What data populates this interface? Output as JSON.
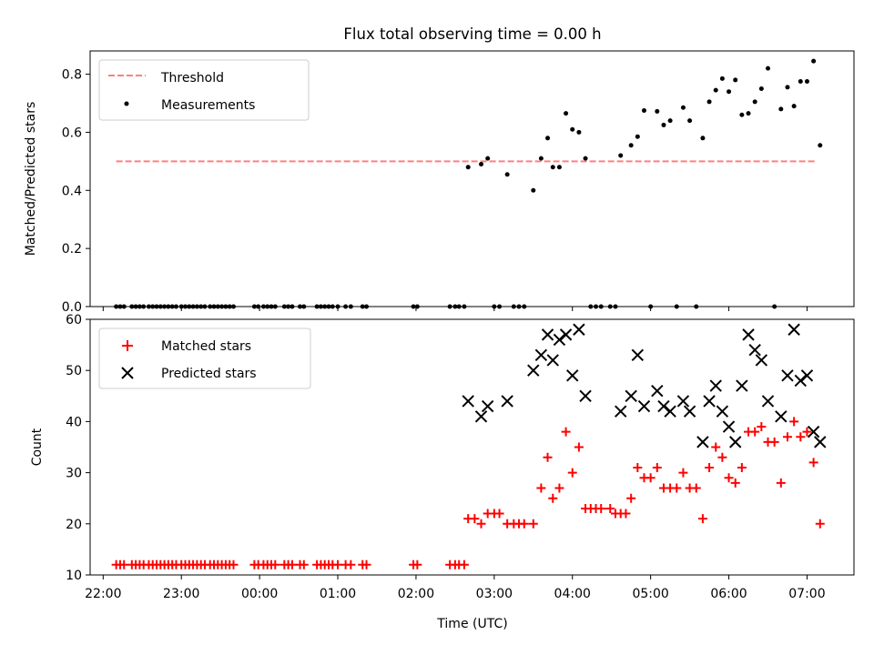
{
  "title": "Flux total observing time = 0.00 h",
  "colors": {
    "threshold": "#ff7f7f",
    "measurements": "#000000",
    "matched": "#ff0000",
    "predicted": "#000000"
  },
  "chart_data": [
    {
      "type": "scatter",
      "ylabel": "Matched/Predicted stars",
      "xlim": [
        "21:50",
        "07:36"
      ],
      "ylim": [
        0,
        0.88
      ],
      "yticks": [
        0.0,
        0.2,
        0.4,
        0.6,
        0.8
      ],
      "grid": false,
      "legend": "top-left",
      "threshold": {
        "name": "Threshold",
        "y": 0.5,
        "x": [
          "22:10",
          "07:06"
        ]
      },
      "series": [
        {
          "name": "Measurements",
          "points": [
            [
              "22:10",
              0
            ],
            [
              "22:13",
              0
            ],
            [
              "22:16",
              0
            ],
            [
              "22:22",
              0
            ],
            [
              "22:25",
              0
            ],
            [
              "22:28",
              0
            ],
            [
              "22:31",
              0
            ],
            [
              "22:35",
              0
            ],
            [
              "22:38",
              0
            ],
            [
              "22:41",
              0
            ],
            [
              "22:44",
              0
            ],
            [
              "22:47",
              0
            ],
            [
              "22:50",
              0
            ],
            [
              "22:53",
              0
            ],
            [
              "22:56",
              0
            ],
            [
              "23:00",
              0
            ],
            [
              "23:03",
              0
            ],
            [
              "23:06",
              0
            ],
            [
              "23:09",
              0
            ],
            [
              "23:12",
              0
            ],
            [
              "23:15",
              0
            ],
            [
              "23:18",
              0
            ],
            [
              "23:22",
              0
            ],
            [
              "23:25",
              0
            ],
            [
              "23:28",
              0
            ],
            [
              "23:31",
              0
            ],
            [
              "23:34",
              0
            ],
            [
              "23:37",
              0
            ],
            [
              "23:40",
              0
            ],
            [
              "23:56",
              0
            ],
            [
              "23:59",
              0
            ],
            [
              "00:03",
              0
            ],
            [
              "00:06",
              0
            ],
            [
              "00:09",
              0
            ],
            [
              "00:12",
              0
            ],
            [
              "00:19",
              0
            ],
            [
              "00:22",
              0
            ],
            [
              "00:25",
              0
            ],
            [
              "00:31",
              0
            ],
            [
              "00:34",
              0
            ],
            [
              "00:44",
              0
            ],
            [
              "00:47",
              0
            ],
            [
              "00:50",
              0
            ],
            [
              "00:53",
              0
            ],
            [
              "00:56",
              0
            ],
            [
              "01:00",
              0
            ],
            [
              "01:06",
              0
            ],
            [
              "01:10",
              0
            ],
            [
              "01:19",
              0
            ],
            [
              "01:22",
              0
            ],
            [
              "01:58",
              0
            ],
            [
              "02:01",
              0
            ],
            [
              "02:26",
              0
            ],
            [
              "02:30",
              0
            ],
            [
              "02:33",
              0
            ],
            [
              "02:37",
              0
            ],
            [
              "02:40",
              0.48
            ],
            [
              "02:50",
              0.49
            ],
            [
              "02:55",
              0.51
            ],
            [
              "03:00",
              0
            ],
            [
              "03:04",
              0
            ],
            [
              "03:10",
              0.455
            ],
            [
              "03:15",
              0
            ],
            [
              "03:19",
              0
            ],
            [
              "03:23",
              0
            ],
            [
              "03:30",
              0.4
            ],
            [
              "03:36",
              0.51
            ],
            [
              "03:41",
              0.58
            ],
            [
              "03:45",
              0.48
            ],
            [
              "03:50",
              0.48
            ],
            [
              "03:55",
              0.665
            ],
            [
              "04:00",
              0.61
            ],
            [
              "04:05",
              0.6
            ],
            [
              "04:10",
              0.51
            ],
            [
              "04:14",
              0
            ],
            [
              "04:18",
              0
            ],
            [
              "04:22",
              0
            ],
            [
              "04:29",
              0
            ],
            [
              "04:33",
              0
            ],
            [
              "04:37",
              0.52
            ],
            [
              "04:45",
              0.555
            ],
            [
              "04:50",
              0.585
            ],
            [
              "04:55",
              0.675
            ],
            [
              "05:00",
              0
            ],
            [
              "05:05",
              0.672
            ],
            [
              "05:10",
              0.625
            ],
            [
              "05:15",
              0.64
            ],
            [
              "05:20",
              0
            ],
            [
              "05:25",
              0.685
            ],
            [
              "05:30",
              0.64
            ],
            [
              "05:35",
              0
            ],
            [
              "05:40",
              0.58
            ],
            [
              "05:45",
              0.705
            ],
            [
              "05:50",
              0.745
            ],
            [
              "05:55",
              0.785
            ],
            [
              "06:00",
              0.74
            ],
            [
              "06:05",
              0.78
            ],
            [
              "06:10",
              0.66
            ],
            [
              "06:15",
              0.665
            ],
            [
              "06:20",
              0.705
            ],
            [
              "06:25",
              0.75
            ],
            [
              "06:30",
              0.82
            ],
            [
              "06:35",
              0
            ],
            [
              "06:40",
              0.68
            ],
            [
              "06:45",
              0.755
            ],
            [
              "06:50",
              0.69
            ],
            [
              "06:55",
              0.775
            ],
            [
              "07:00",
              0.775
            ],
            [
              "07:05",
              0.845
            ],
            [
              "07:10",
              0.555
            ]
          ]
        }
      ]
    },
    {
      "type": "scatter",
      "xlabel": "Time (UTC)",
      "ylabel": "Count",
      "xlim": [
        "21:50",
        "07:36"
      ],
      "ylim": [
        10,
        60
      ],
      "yticks": [
        10,
        20,
        30,
        40,
        50,
        60
      ],
      "xticks": [
        "22:00",
        "23:00",
        "00:00",
        "01:00",
        "02:00",
        "03:00",
        "04:00",
        "05:00",
        "06:00",
        "07:00"
      ],
      "grid": false,
      "legend": "top-left",
      "series": [
        {
          "name": "Matched stars",
          "points": [
            [
              "22:10",
              12
            ],
            [
              "22:13",
              12
            ],
            [
              "22:16",
              12
            ],
            [
              "22:22",
              12
            ],
            [
              "22:25",
              12
            ],
            [
              "22:28",
              12
            ],
            [
              "22:31",
              12
            ],
            [
              "22:35",
              12
            ],
            [
              "22:38",
              12
            ],
            [
              "22:41",
              12
            ],
            [
              "22:44",
              12
            ],
            [
              "22:47",
              12
            ],
            [
              "22:50",
              12
            ],
            [
              "22:53",
              12
            ],
            [
              "22:56",
              12
            ],
            [
              "23:00",
              12
            ],
            [
              "23:03",
              12
            ],
            [
              "23:06",
              12
            ],
            [
              "23:09",
              12
            ],
            [
              "23:12",
              12
            ],
            [
              "23:15",
              12
            ],
            [
              "23:18",
              12
            ],
            [
              "23:22",
              12
            ],
            [
              "23:25",
              12
            ],
            [
              "23:28",
              12
            ],
            [
              "23:31",
              12
            ],
            [
              "23:34",
              12
            ],
            [
              "23:37",
              12
            ],
            [
              "23:40",
              12
            ],
            [
              "23:56",
              12
            ],
            [
              "23:59",
              12
            ],
            [
              "00:03",
              12
            ],
            [
              "00:06",
              12
            ],
            [
              "00:09",
              12
            ],
            [
              "00:12",
              12
            ],
            [
              "00:19",
              12
            ],
            [
              "00:22",
              12
            ],
            [
              "00:25",
              12
            ],
            [
              "00:31",
              12
            ],
            [
              "00:34",
              12
            ],
            [
              "00:44",
              12
            ],
            [
              "00:47",
              12
            ],
            [
              "00:50",
              12
            ],
            [
              "00:53",
              12
            ],
            [
              "00:56",
              12
            ],
            [
              "01:00",
              12
            ],
            [
              "01:06",
              12
            ],
            [
              "01:10",
              12
            ],
            [
              "01:19",
              12
            ],
            [
              "01:22",
              12
            ],
            [
              "01:58",
              12
            ],
            [
              "02:01",
              12
            ],
            [
              "02:26",
              12
            ],
            [
              "02:30",
              12
            ],
            [
              "02:33",
              12
            ],
            [
              "02:37",
              12
            ],
            [
              "02:40",
              21
            ],
            [
              "02:45",
              21
            ],
            [
              "02:50",
              20
            ],
            [
              "02:55",
              22
            ],
            [
              "03:00",
              22
            ],
            [
              "03:04",
              22
            ],
            [
              "03:10",
              20
            ],
            [
              "03:15",
              20
            ],
            [
              "03:19",
              20
            ],
            [
              "03:23",
              20
            ],
            [
              "03:30",
              20
            ],
            [
              "03:36",
              27
            ],
            [
              "03:41",
              33
            ],
            [
              "03:45",
              25
            ],
            [
              "03:50",
              27
            ],
            [
              "03:55",
              38
            ],
            [
              "04:00",
              30
            ],
            [
              "04:05",
              35
            ],
            [
              "04:10",
              23
            ],
            [
              "04:14",
              23
            ],
            [
              "04:18",
              23
            ],
            [
              "04:22",
              23
            ],
            [
              "04:29",
              23
            ],
            [
              "04:33",
              22
            ],
            [
              "04:37",
              22
            ],
            [
              "04:41",
              22
            ],
            [
              "04:45",
              25
            ],
            [
              "04:50",
              31
            ],
            [
              "04:55",
              29
            ],
            [
              "05:00",
              29
            ],
            [
              "05:05",
              31
            ],
            [
              "05:10",
              27
            ],
            [
              "05:15",
              27
            ],
            [
              "05:20",
              27
            ],
            [
              "05:25",
              30
            ],
            [
              "05:30",
              27
            ],
            [
              "05:35",
              27
            ],
            [
              "05:40",
              21
            ],
            [
              "05:45",
              31
            ],
            [
              "05:50",
              35
            ],
            [
              "05:55",
              33
            ],
            [
              "06:00",
              29
            ],
            [
              "06:05",
              28
            ],
            [
              "06:10",
              31
            ],
            [
              "06:15",
              38
            ],
            [
              "06:20",
              38
            ],
            [
              "06:25",
              39
            ],
            [
              "06:30",
              36
            ],
            [
              "06:35",
              36
            ],
            [
              "06:40",
              28
            ],
            [
              "06:45",
              37
            ],
            [
              "06:50",
              40
            ],
            [
              "06:55",
              37
            ],
            [
              "07:00",
              38
            ],
            [
              "07:05",
              32
            ],
            [
              "07:10",
              20
            ]
          ]
        },
        {
          "name": "Predicted stars",
          "points": [
            [
              "02:40",
              44
            ],
            [
              "02:50",
              41
            ],
            [
              "02:55",
              43
            ],
            [
              "03:10",
              44
            ],
            [
              "03:30",
              50
            ],
            [
              "03:36",
              53
            ],
            [
              "03:41",
              57
            ],
            [
              "03:45",
              52
            ],
            [
              "03:50",
              56
            ],
            [
              "03:55",
              57
            ],
            [
              "04:00",
              49
            ],
            [
              "04:05",
              58
            ],
            [
              "04:10",
              45
            ],
            [
              "04:37",
              42
            ],
            [
              "04:45",
              45
            ],
            [
              "04:50",
              53
            ],
            [
              "04:55",
              43
            ],
            [
              "05:05",
              46
            ],
            [
              "05:10",
              43
            ],
            [
              "05:15",
              42
            ],
            [
              "05:25",
              44
            ],
            [
              "05:30",
              42
            ],
            [
              "05:40",
              36
            ],
            [
              "05:45",
              44
            ],
            [
              "05:50",
              47
            ],
            [
              "05:55",
              42
            ],
            [
              "06:00",
              39
            ],
            [
              "06:05",
              36
            ],
            [
              "06:10",
              47
            ],
            [
              "06:15",
              57
            ],
            [
              "06:20",
              54
            ],
            [
              "06:25",
              52
            ],
            [
              "06:30",
              44
            ],
            [
              "06:40",
              41
            ],
            [
              "06:45",
              49
            ],
            [
              "06:50",
              58
            ],
            [
              "06:55",
              48
            ],
            [
              "07:00",
              49
            ],
            [
              "07:05",
              38
            ],
            [
              "07:10",
              36
            ]
          ]
        }
      ]
    }
  ]
}
